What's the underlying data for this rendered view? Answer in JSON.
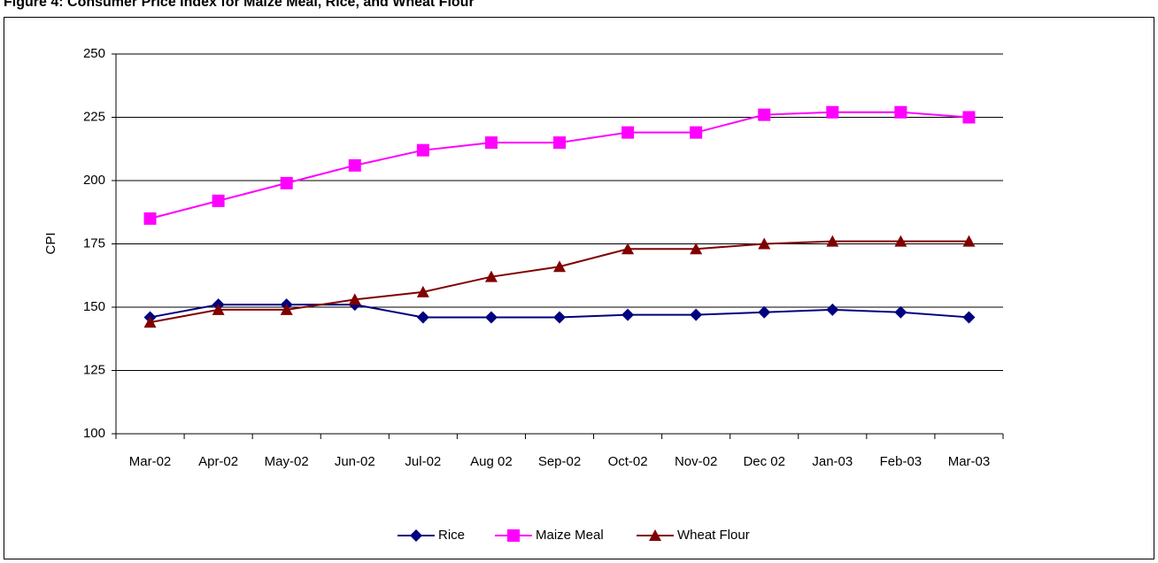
{
  "chart_data": {
    "type": "line",
    "title": "Figure 4: Consumer Price Index for Maize Meal, Rice, and Wheat Flour",
    "y_label": "CPI",
    "categories": [
      "Mar-02",
      "Apr-02",
      "May-02",
      "Jun-02",
      "Jul-02",
      "Aug 02",
      "Sep-02",
      "Oct-02",
      "Nov-02",
      "Dec 02",
      "Jan-03",
      "Feb-03",
      "Mar-03"
    ],
    "series": [
      {
        "name": "Rice",
        "color": "#000080",
        "marker": "diamond",
        "values": [
          146,
          151,
          151,
          151,
          146,
          146,
          146,
          147,
          147,
          148,
          149,
          148,
          146
        ]
      },
      {
        "name": "Maize Meal",
        "color": "#ff00ff",
        "marker": "square",
        "values": [
          185,
          192,
          199,
          206,
          212,
          215,
          215,
          219,
          219,
          226,
          227,
          227,
          225
        ]
      },
      {
        "name": "Wheat Flour",
        "color": "#800000",
        "marker": "triangle",
        "values": [
          144,
          149,
          149,
          153,
          156,
          162,
          166,
          173,
          173,
          175,
          176,
          176,
          176
        ]
      }
    ],
    "ylim": [
      100,
      250
    ],
    "yticks": [
      100,
      125,
      150,
      175,
      200,
      225,
      250
    ],
    "grid": true,
    "legend": "bottom"
  }
}
